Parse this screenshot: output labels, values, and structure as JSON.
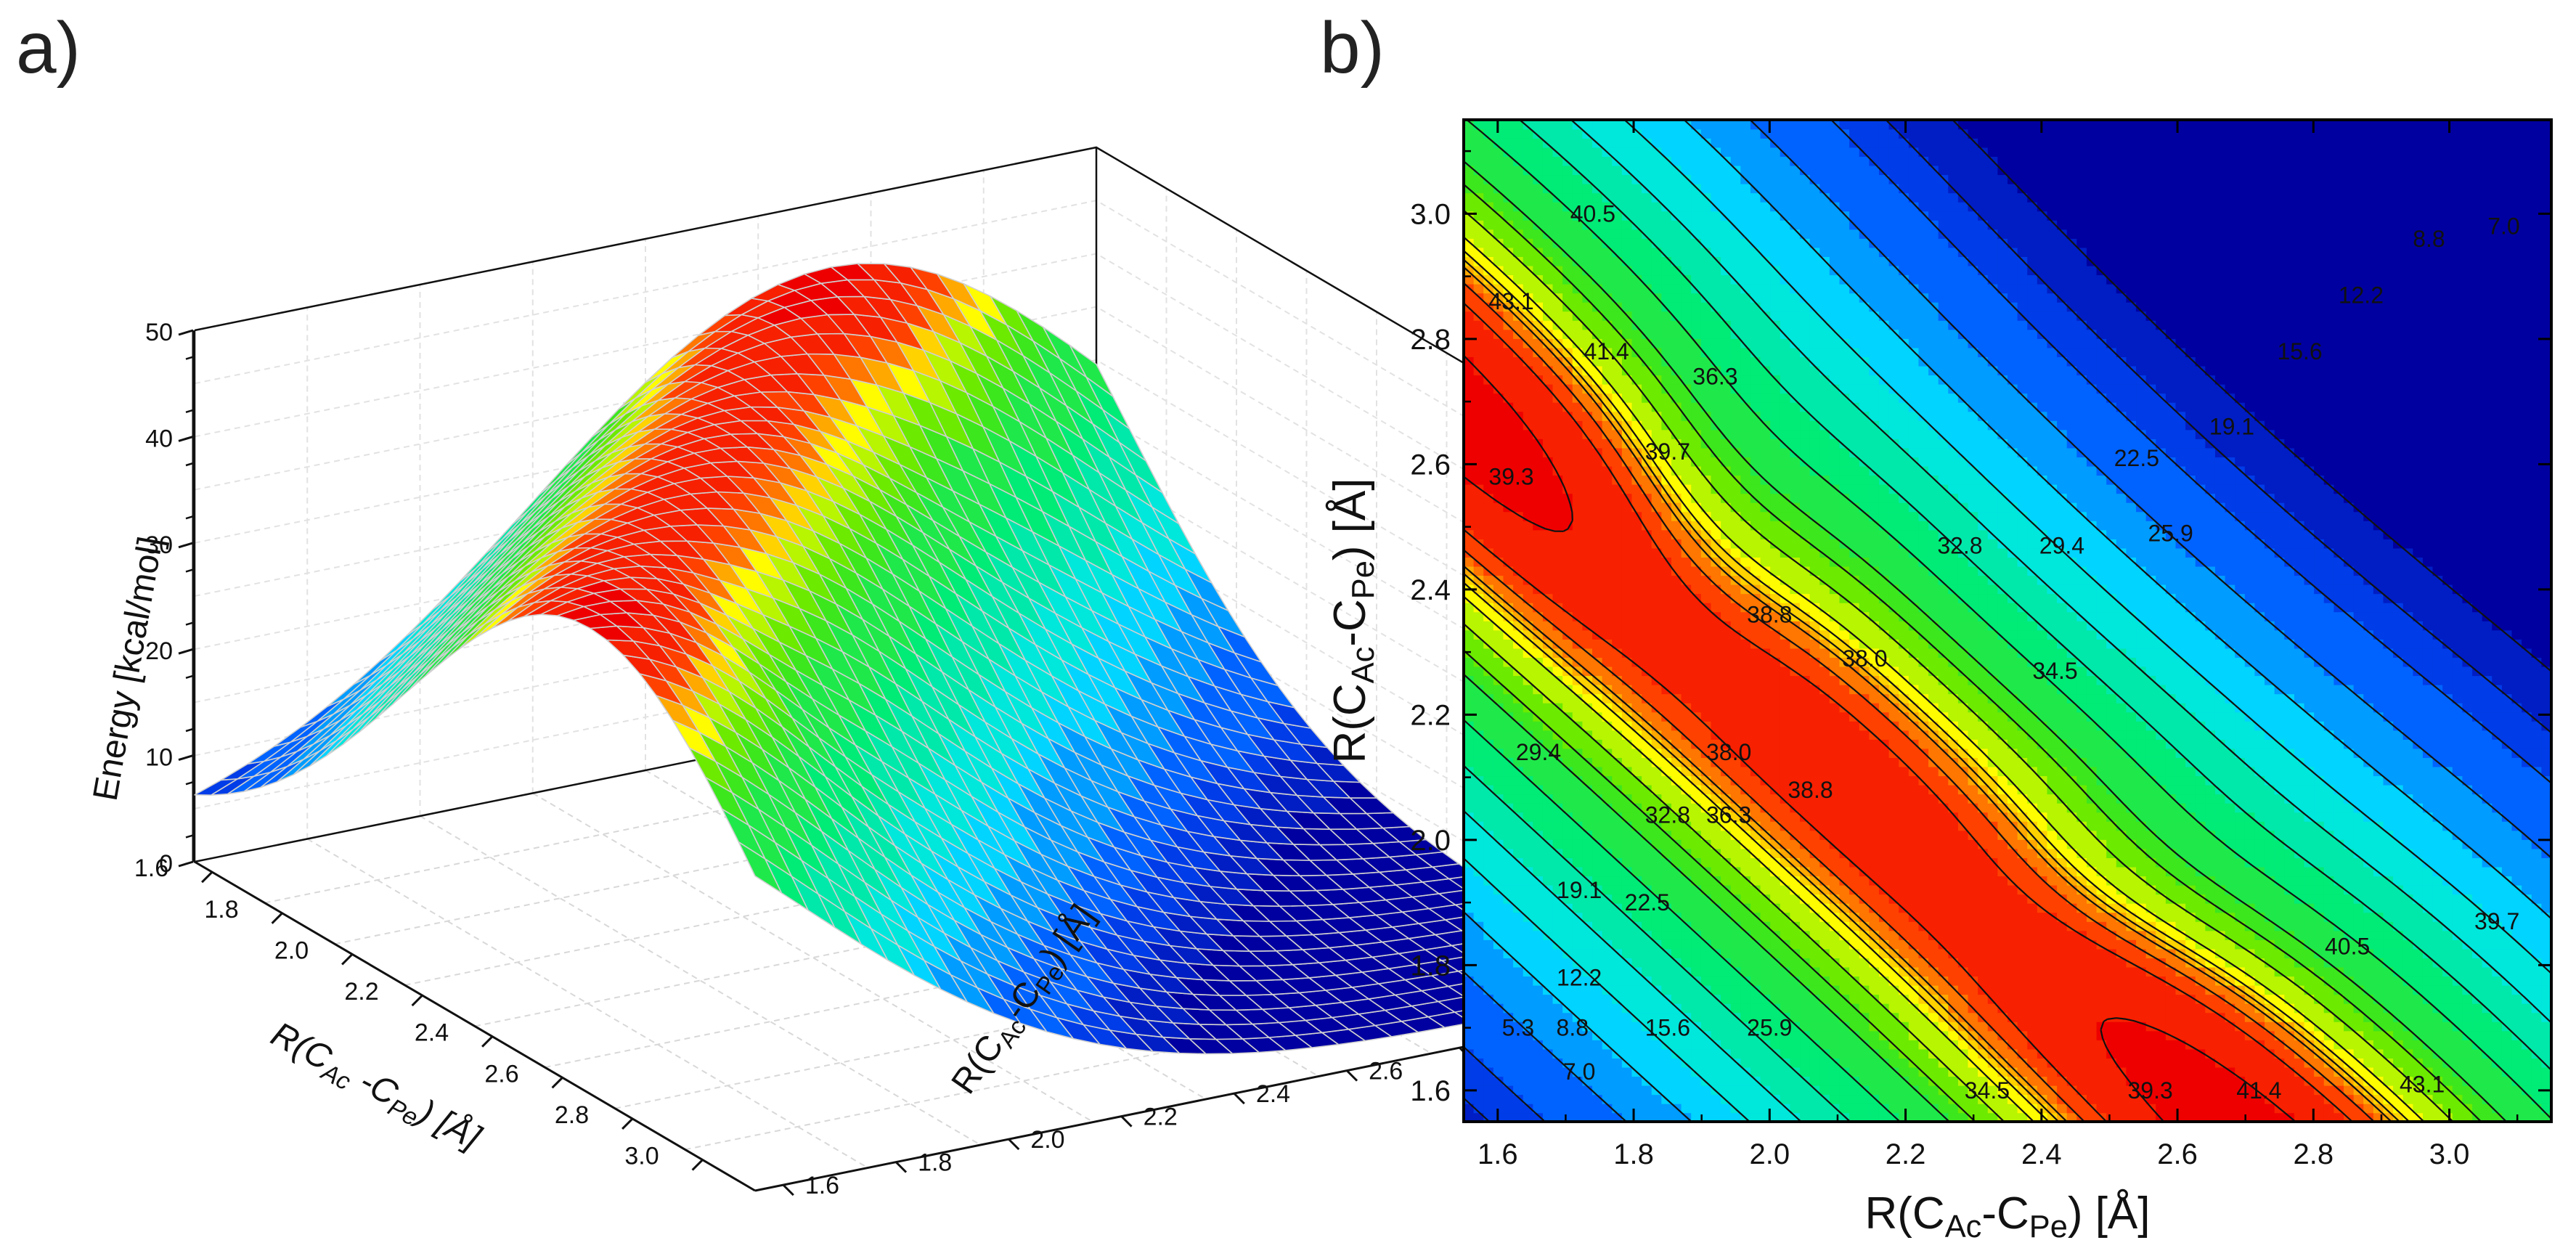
{
  "panels": {
    "a": "a)",
    "b": "b)"
  },
  "chart_data": [
    {
      "type": "surface3d",
      "panel": "a)",
      "zlabel": "Energy [kcal/mol]",
      "xlabel": "R(C_Ac-C_Pe) [Å]",
      "ylabel": "R(C_Ac-C_Pe) [Å]",
      "xlabel_parts": {
        "pre": "R(C",
        "sub1": "Ac",
        "mid": " -C",
        "sub2": "Pe",
        "post": ") [Å]"
      },
      "ylabel_parts": {
        "pre": "R(C",
        "sub1": "Ac",
        "mid": "-C",
        "sub2": "Pe",
        "post": ") [Å]"
      },
      "zlabel_text": "Energy [kcal/mol]",
      "x_ticks": [
        "1.6",
        "1.8",
        "2.0",
        "2.2",
        "2.4",
        "2.6",
        "2.8",
        "3.0"
      ],
      "y_ticks": [
        "1.6",
        "1.8",
        "2.0",
        "2.2",
        "2.4",
        "2.6",
        "2.8",
        "3.0"
      ],
      "z_ticks": [
        "0",
        "10",
        "20",
        "30",
        "40",
        "50"
      ],
      "x_range": [
        1.55,
        3.15
      ],
      "y_range": [
        1.55,
        3.15
      ],
      "z_range": [
        0,
        50
      ],
      "surface_corners": {
        "min_at": [
          1.6,
          1.6
        ],
        "min_value": 0,
        "saddle_region_value": 39,
        "max_at": [
          3.1,
          1.6
        ],
        "max_value": 44,
        "low_corner_at": [
          3.1,
          3.1
        ],
        "low_corner_value": 6
      }
    },
    {
      "type": "contour",
      "panel": "b)",
      "xlabel": "R(C_Ac-C_Pe) [Å]",
      "ylabel": "R(C_Ac-C_Pe) [Å]",
      "xlabel_parts": {
        "pre": "R(C",
        "sub1": "Ac",
        "mid": "-C",
        "sub2": "Pe",
        "post": ") [Å]"
      },
      "ylabel_parts": {
        "pre": "R(C",
        "sub1": "Ac",
        "mid": "-C",
        "sub2": "Pe",
        "post": ") [Å]"
      },
      "xlim": [
        1.55,
        3.15
      ],
      "ylim": [
        1.55,
        3.15
      ],
      "x_ticks": [
        "1.6",
        "1.8",
        "2.0",
        "2.2",
        "2.4",
        "2.6",
        "2.8",
        "3.0"
      ],
      "y_ticks": [
        "1.6",
        "1.8",
        "2.0",
        "2.2",
        "2.4",
        "2.6",
        "2.8",
        "3.0"
      ],
      "levels": [
        5.3,
        7.0,
        8.8,
        12.2,
        15.6,
        19.1,
        22.5,
        25.9,
        29.4,
        32.8,
        34.5,
        36.3,
        38.0,
        38.8,
        39.3,
        39.7,
        40.5,
        41.4,
        43.1
      ],
      "contour_labels": [
        {
          "text": "43.1",
          "x": 1.62,
          "y": 2.86
        },
        {
          "text": "40.5",
          "x": 1.74,
          "y": 3.0
        },
        {
          "text": "41.4",
          "x": 1.76,
          "y": 2.78
        },
        {
          "text": "39.3",
          "x": 1.62,
          "y": 2.58
        },
        {
          "text": "39.7",
          "x": 1.85,
          "y": 2.62
        },
        {
          "text": "36.3",
          "x": 1.92,
          "y": 2.74
        },
        {
          "text": "38.8",
          "x": 2.0,
          "y": 2.36
        },
        {
          "text": "38.0",
          "x": 2.14,
          "y": 2.29
        },
        {
          "text": "38.0",
          "x": 1.94,
          "y": 2.14
        },
        {
          "text": "38.8",
          "x": 2.06,
          "y": 2.08
        },
        {
          "text": "32.8",
          "x": 1.85,
          "y": 2.04
        },
        {
          "text": "36.3",
          "x": 1.94,
          "y": 2.04
        },
        {
          "text": "29.4",
          "x": 1.66,
          "y": 2.14
        },
        {
          "text": "19.1",
          "x": 1.72,
          "y": 1.92
        },
        {
          "text": "22.5",
          "x": 1.82,
          "y": 1.9
        },
        {
          "text": "12.2",
          "x": 1.72,
          "y": 1.78
        },
        {
          "text": "5.3",
          "x": 1.63,
          "y": 1.7
        },
        {
          "text": "8.8",
          "x": 1.71,
          "y": 1.7
        },
        {
          "text": "15.6",
          "x": 1.85,
          "y": 1.7
        },
        {
          "text": "7.0",
          "x": 1.72,
          "y": 1.63
        },
        {
          "text": "25.9",
          "x": 2.0,
          "y": 1.7
        },
        {
          "text": "34.5",
          "x": 2.32,
          "y": 1.6
        },
        {
          "text": "39.3",
          "x": 2.56,
          "y": 1.6
        },
        {
          "text": "41.4",
          "x": 2.72,
          "y": 1.6
        },
        {
          "text": "43.1",
          "x": 2.96,
          "y": 1.61
        },
        {
          "text": "40.5",
          "x": 2.85,
          "y": 1.83
        },
        {
          "text": "39.7",
          "x": 3.07,
          "y": 1.87
        },
        {
          "text": "32.8",
          "x": 2.28,
          "y": 2.47
        },
        {
          "text": "29.4",
          "x": 2.43,
          "y": 2.47
        },
        {
          "text": "25.9",
          "x": 2.59,
          "y": 2.49
        },
        {
          "text": "34.5",
          "x": 2.42,
          "y": 2.27
        },
        {
          "text": "22.5",
          "x": 2.54,
          "y": 2.61
        },
        {
          "text": "19.1",
          "x": 2.68,
          "y": 2.66
        },
        {
          "text": "15.6",
          "x": 2.78,
          "y": 2.78
        },
        {
          "text": "12.2",
          "x": 2.87,
          "y": 2.87
        },
        {
          "text": "8.8",
          "x": 2.97,
          "y": 2.96
        },
        {
          "text": "7.0",
          "x": 3.08,
          "y": 2.98
        }
      ]
    }
  ]
}
